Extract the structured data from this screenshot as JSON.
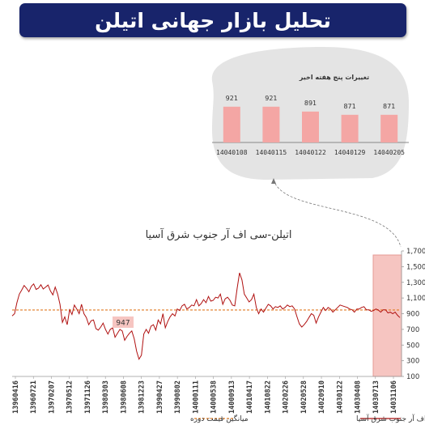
{
  "banner": {
    "title": "تحلیل بازار جهانی اتیلن"
  },
  "chart_data": [
    {
      "type": "bar",
      "title": "تغییرات پنج هفته اخیر",
      "categories": [
        "14040108",
        "14040115",
        "14040122",
        "14040129",
        "14040205"
      ],
      "values": [
        921,
        921,
        891,
        871,
        871
      ],
      "ylim": [
        700,
        1000
      ],
      "grid": false,
      "colors": {
        "bar": "#f4a6a4",
        "bubble": "#e4e4e4"
      }
    },
    {
      "type": "line",
      "title": "اتیلن-سی اف آر جنوب شرق آسیا",
      "ylim": [
        100,
        1700
      ],
      "y_ticks": [
        "100",
        "300",
        "500",
        "700",
        "900",
        "1,100",
        "1,300",
        "1,500",
        "1,700"
      ],
      "x_tick_labels": [
        "13960416",
        "13960721",
        "13970207",
        "13970512",
        "13971126",
        "13980303",
        "13980608",
        "13981223",
        "13990427",
        "13990802",
        "14000111",
        "14000538",
        "14000913",
        "14010417",
        "14010822",
        "14020226",
        "14020528",
        "14020910",
        "14030122",
        "14030408",
        "14030713",
        "14031106"
      ],
      "series": [
        {
          "name": "اتیلن-سی اف آر جنوب شرق آسیا",
          "color": "#b01010",
          "values": [
            872,
            900,
            1040,
            1150,
            1200,
            1260,
            1225,
            1180,
            1250,
            1280,
            1210,
            1225,
            1270,
            1215,
            1240,
            1265,
            1190,
            1140,
            1240,
            1150,
            1020,
            790,
            860,
            760,
            950,
            890,
            1010,
            960,
            900,
            1020,
            900,
            850,
            760,
            810,
            820,
            710,
            690,
            730,
            780,
            700,
            640,
            700,
            720,
            600,
            650,
            700,
            680,
            560,
            610,
            650,
            680,
            580,
            420,
            320,
            370,
            640,
            700,
            650,
            740,
            760,
            690,
            820,
            770,
            900,
            720,
            800,
            860,
            900,
            870,
            960,
            940,
            1000,
            1020,
            960,
            980,
            1010,
            1000,
            1080,
            1000,
            1030,
            1080,
            1040,
            1120,
            1060,
            1070,
            1110,
            1100,
            1150,
            1020,
            1090,
            1110,
            1070,
            1010,
            1000,
            1220,
            1420,
            1330,
            1150,
            1100,
            1050,
            1080,
            1150,
            980,
            900,
            960,
            920,
            970,
            1020,
            1000,
            960,
            990,
            980,
            1000,
            960,
            980,
            1010,
            990,
            1000,
            960,
            860,
            770,
            730,
            760,
            800,
            850,
            900,
            880,
            780,
            860,
            920,
            980,
            940,
            980,
            960,
            920,
            950,
            980,
            1010,
            1000,
            990,
            980,
            960,
            950,
            920,
            960,
            960,
            980,
            990,
            950,
            950,
            930,
            940,
            960,
            945,
            920,
            950,
            950,
            910,
            920,
            900,
            920,
            880,
            850
          ],
          "y_range_hint": [
            100,
            1700
          ]
        },
        {
          "name": "میانگین قیمت دوره",
          "color": "#e07a20",
          "values": [
            947
          ]
        }
      ],
      "annotations": [
        {
          "text": "947"
        }
      ],
      "highlight": "last five weeks",
      "colors": {
        "highlight": "#f6c5c1",
        "highlight_border": "#e59a95"
      },
      "legend": "bottom"
    }
  ]
}
